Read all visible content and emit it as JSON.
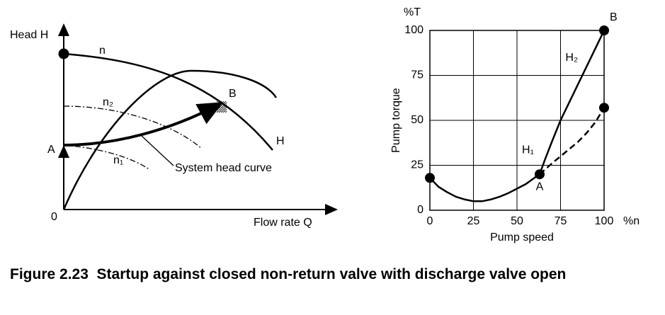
{
  "left_diagram": {
    "y_axis_label": "Head H",
    "x_axis_label": "Flow rate Q",
    "origin_label": "0",
    "labels": {
      "n": "n",
      "n2": "n₂",
      "n1": "n₁",
      "B": "B",
      "H": "H",
      "A": "A",
      "system": "System head curve"
    }
  },
  "chart_data": {
    "type": "line",
    "xlabel": "Pump speed",
    "ylabel": "Pump torque",
    "x_unit": "%n",
    "y_unit": "%T",
    "xlim": [
      0,
      100
    ],
    "ylim": [
      0,
      100
    ],
    "xticks": [
      0,
      25,
      50,
      75,
      100
    ],
    "yticks": [
      0,
      25,
      50,
      75,
      100
    ],
    "grid": true,
    "series": [
      {
        "color": "#000000",
        "style": "solid",
        "x": [
          0,
          5,
          10,
          15,
          20,
          25,
          30,
          35,
          40,
          45,
          50,
          55,
          60,
          63
        ],
        "values": [
          18,
          13,
          10,
          7.5,
          6,
          5,
          5,
          6,
          7.5,
          9.5,
          12,
          14.5,
          18,
          20
        ]
      },
      {
        "name": "H₂",
        "color": "#000000",
        "style": "solid",
        "x": [
          63,
          66,
          70,
          75,
          80,
          85,
          90,
          95,
          100
        ],
        "values": [
          20,
          28,
          38,
          50,
          60,
          70,
          80,
          90,
          100
        ]
      },
      {
        "name": "H₁",
        "color": "#000000",
        "style": "dashed",
        "x": [
          63,
          70,
          75,
          80,
          85,
          90,
          95,
          100
        ],
        "values": [
          20,
          26,
          30,
          34,
          38,
          43,
          49,
          57
        ]
      }
    ],
    "markers": {
      "x": [
        0,
        63,
        100,
        100
      ],
      "values": [
        18,
        20,
        100,
        57
      ]
    },
    "annotations": [
      {
        "text": "A",
        "x": 63,
        "y": 20
      },
      {
        "text": "B",
        "x": 100,
        "y": 100
      }
    ]
  },
  "caption": "Figure 2.23  Startup against closed non-return valve with discharge valve open"
}
